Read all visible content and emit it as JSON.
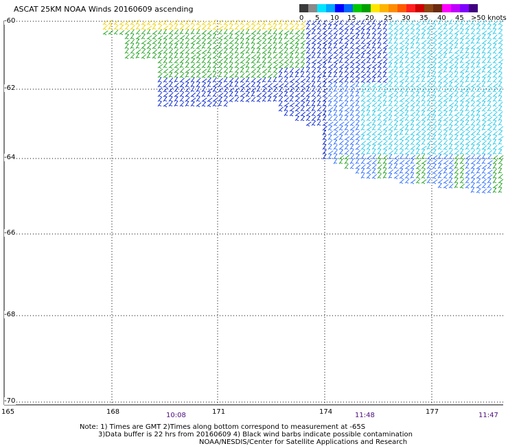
{
  "title": "ASCAT 25KM NOAA Winds 20160609 ascending",
  "colorbar": {
    "labels": [
      "0",
      "5",
      "10",
      "15",
      "20",
      "25",
      "30",
      "35",
      "40",
      "45",
      ">50 knots"
    ],
    "colors": [
      "#3a3a3a",
      "#8a8a8a",
      "#00e5ff",
      "#00a8ff",
      "#0000ff",
      "#0066ff",
      "#00c800",
      "#00a000",
      "#ffe600",
      "#ffb400",
      "#ff8c00",
      "#ff5a00",
      "#ff2020",
      "#d00000",
      "#8b4513",
      "#6a2a10",
      "#ff00ff",
      "#c000ff",
      "#8000ff",
      "#400080"
    ]
  },
  "lat_labels": [
    "-60",
    "-62",
    "-64",
    "-66",
    "-68",
    "-70"
  ],
  "lon_labels": [
    "165",
    "168",
    "171",
    "174",
    "177"
  ],
  "time_labels": [
    "10:08",
    "11:48",
    "11:47"
  ],
  "notes": [
    "Note: 1) Times are GMT 2)Times along bottom correspond to measurement at -65S",
    "3)Data buffer is 22 hrs from 20160609 4) Black wind barbs indicate possible contamination",
    "NOAA/NESDIS/Center for Satellite Applications and Research"
  ],
  "wind_colors": {
    "yellow": "#f0d000",
    "green": "#1aa01a",
    "blue": "#0020d0",
    "lightblue": "#2a6cff",
    "cyan": "#20c8e8",
    "black": "#000000"
  }
}
